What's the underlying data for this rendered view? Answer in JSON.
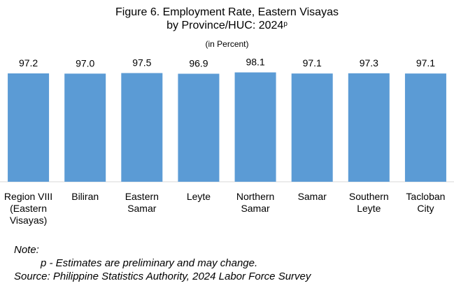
{
  "title_line1": "Figure 6. Employment Rate, Eastern Visayas",
  "title_line2": "by Province/HUC: 2024",
  "title_superscript": "p",
  "subtitle": "(in Percent)",
  "notes": {
    "label": "Note:",
    "p_note": "p -   Estimates are preliminary and may change.",
    "source": "Source: Philippine Statistics Authority, 2024 Labor Force Survey"
  },
  "chart_data": {
    "type": "bar",
    "title": "Figure 6. Employment Rate, Eastern Visayas by Province/HUC: 2024p",
    "subtitle": "(in Percent)",
    "categories": [
      [
        "Region VIII",
        "(Eastern",
        "Visayas)"
      ],
      [
        "Biliran"
      ],
      [
        "Eastern",
        "Samar"
      ],
      [
        "Leyte"
      ],
      [
        "Northern",
        "Samar"
      ],
      [
        "Samar"
      ],
      [
        "Southern",
        "Leyte"
      ],
      [
        "Tacloban",
        "City"
      ]
    ],
    "values": [
      97.2,
      97.0,
      97.5,
      96.9,
      98.1,
      97.1,
      97.3,
      97.1
    ],
    "value_labels": [
      "97.2",
      "97.0",
      "97.5",
      "96.9",
      "98.1",
      "97.1",
      "97.3",
      "97.1"
    ],
    "bar_color": "#5b9bd5",
    "axis_color": "#d9d9d9",
    "grid": false,
    "legend": "none"
  }
}
